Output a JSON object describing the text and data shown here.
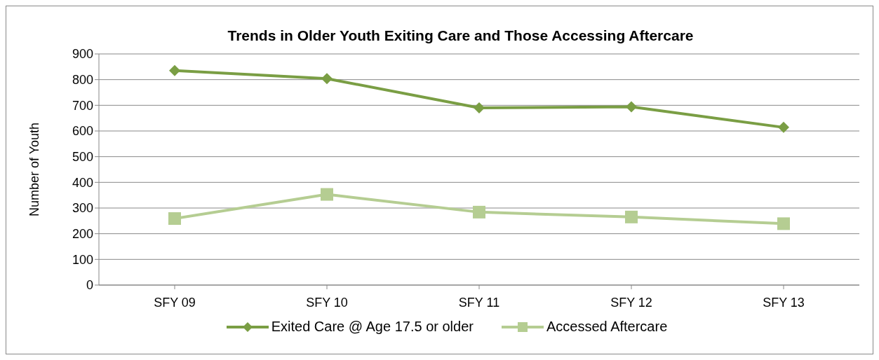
{
  "chart_data": {
    "type": "line",
    "title": "Trends in Older Youth Exiting Care and Those Accessing Aftercare",
    "ylabel": "Number of Youth",
    "categories": [
      "SFY 09",
      "SFY 10",
      "SFY 11",
      "SFY 12",
      "SFY 13"
    ],
    "series": [
      {
        "name": "Exited Care @ Age 17.5 or older",
        "color": "#7a9e44",
        "marker": "diamond",
        "values": [
          835,
          804,
          690,
          694,
          614
        ]
      },
      {
        "name": "Accessed Aftercare",
        "color": "#b5cd92",
        "marker": "square",
        "values": [
          259,
          353,
          284,
          265,
          239
        ]
      }
    ],
    "ylim": [
      0,
      900
    ],
    "yticks": [
      0,
      100,
      200,
      300,
      400,
      500,
      600,
      700,
      800,
      900
    ],
    "grid": "y",
    "legend": "bottom",
    "line_style": "solid"
  }
}
